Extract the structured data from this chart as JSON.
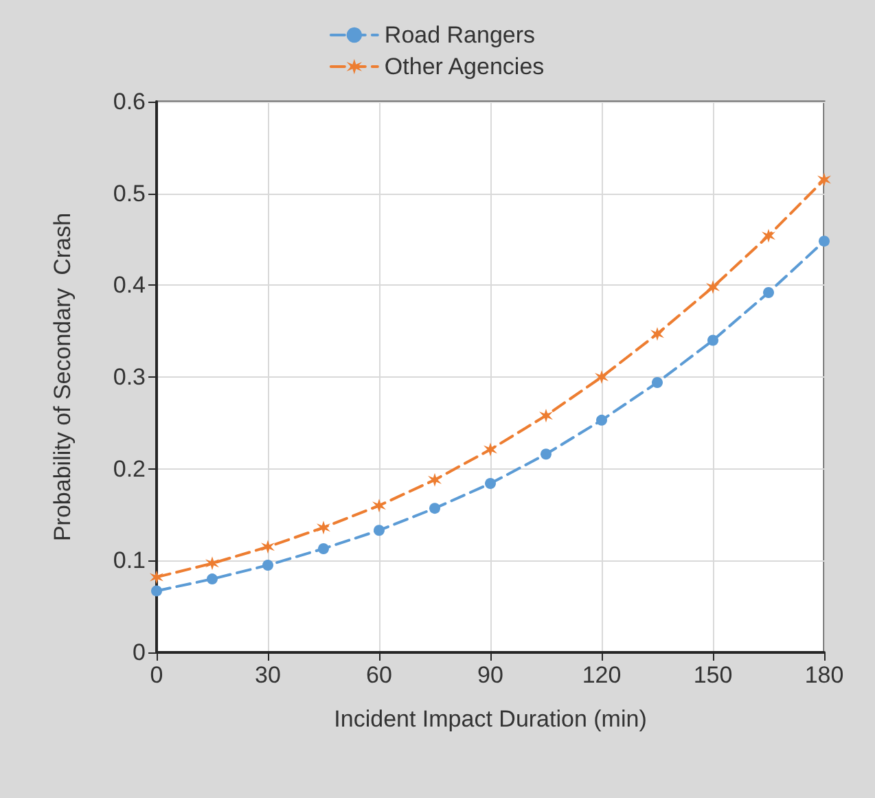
{
  "chart_data": {
    "type": "line",
    "xlabel": "Incident Impact Duration (min)",
    "ylabel": "Probability of Secondary  Crash",
    "x": [
      0,
      15,
      30,
      45,
      60,
      75,
      90,
      105,
      120,
      135,
      150,
      165,
      180
    ],
    "series": [
      {
        "name": "Road Rangers",
        "color": "#5b9bd5",
        "marker": "circle",
        "line_style": "dashed",
        "values": [
          0.067,
          0.08,
          0.095,
          0.113,
          0.133,
          0.157,
          0.184,
          0.216,
          0.253,
          0.294,
          0.34,
          0.392,
          0.448
        ]
      },
      {
        "name": "Other Agencies",
        "color": "#ed7d31",
        "marker": "cross",
        "line_style": "dashed",
        "values": [
          0.082,
          0.097,
          0.115,
          0.136,
          0.16,
          0.188,
          0.221,
          0.258,
          0.3,
          0.347,
          0.398,
          0.454,
          0.515
        ]
      }
    ],
    "xlim": [
      0,
      180
    ],
    "xticks": [
      0,
      30,
      60,
      90,
      120,
      150,
      180
    ],
    "ylim": [
      0,
      0.6
    ],
    "yticks": [
      0,
      0.1,
      0.2,
      0.3,
      0.4,
      0.5,
      0.6
    ],
    "grid": true,
    "legend": "top"
  }
}
